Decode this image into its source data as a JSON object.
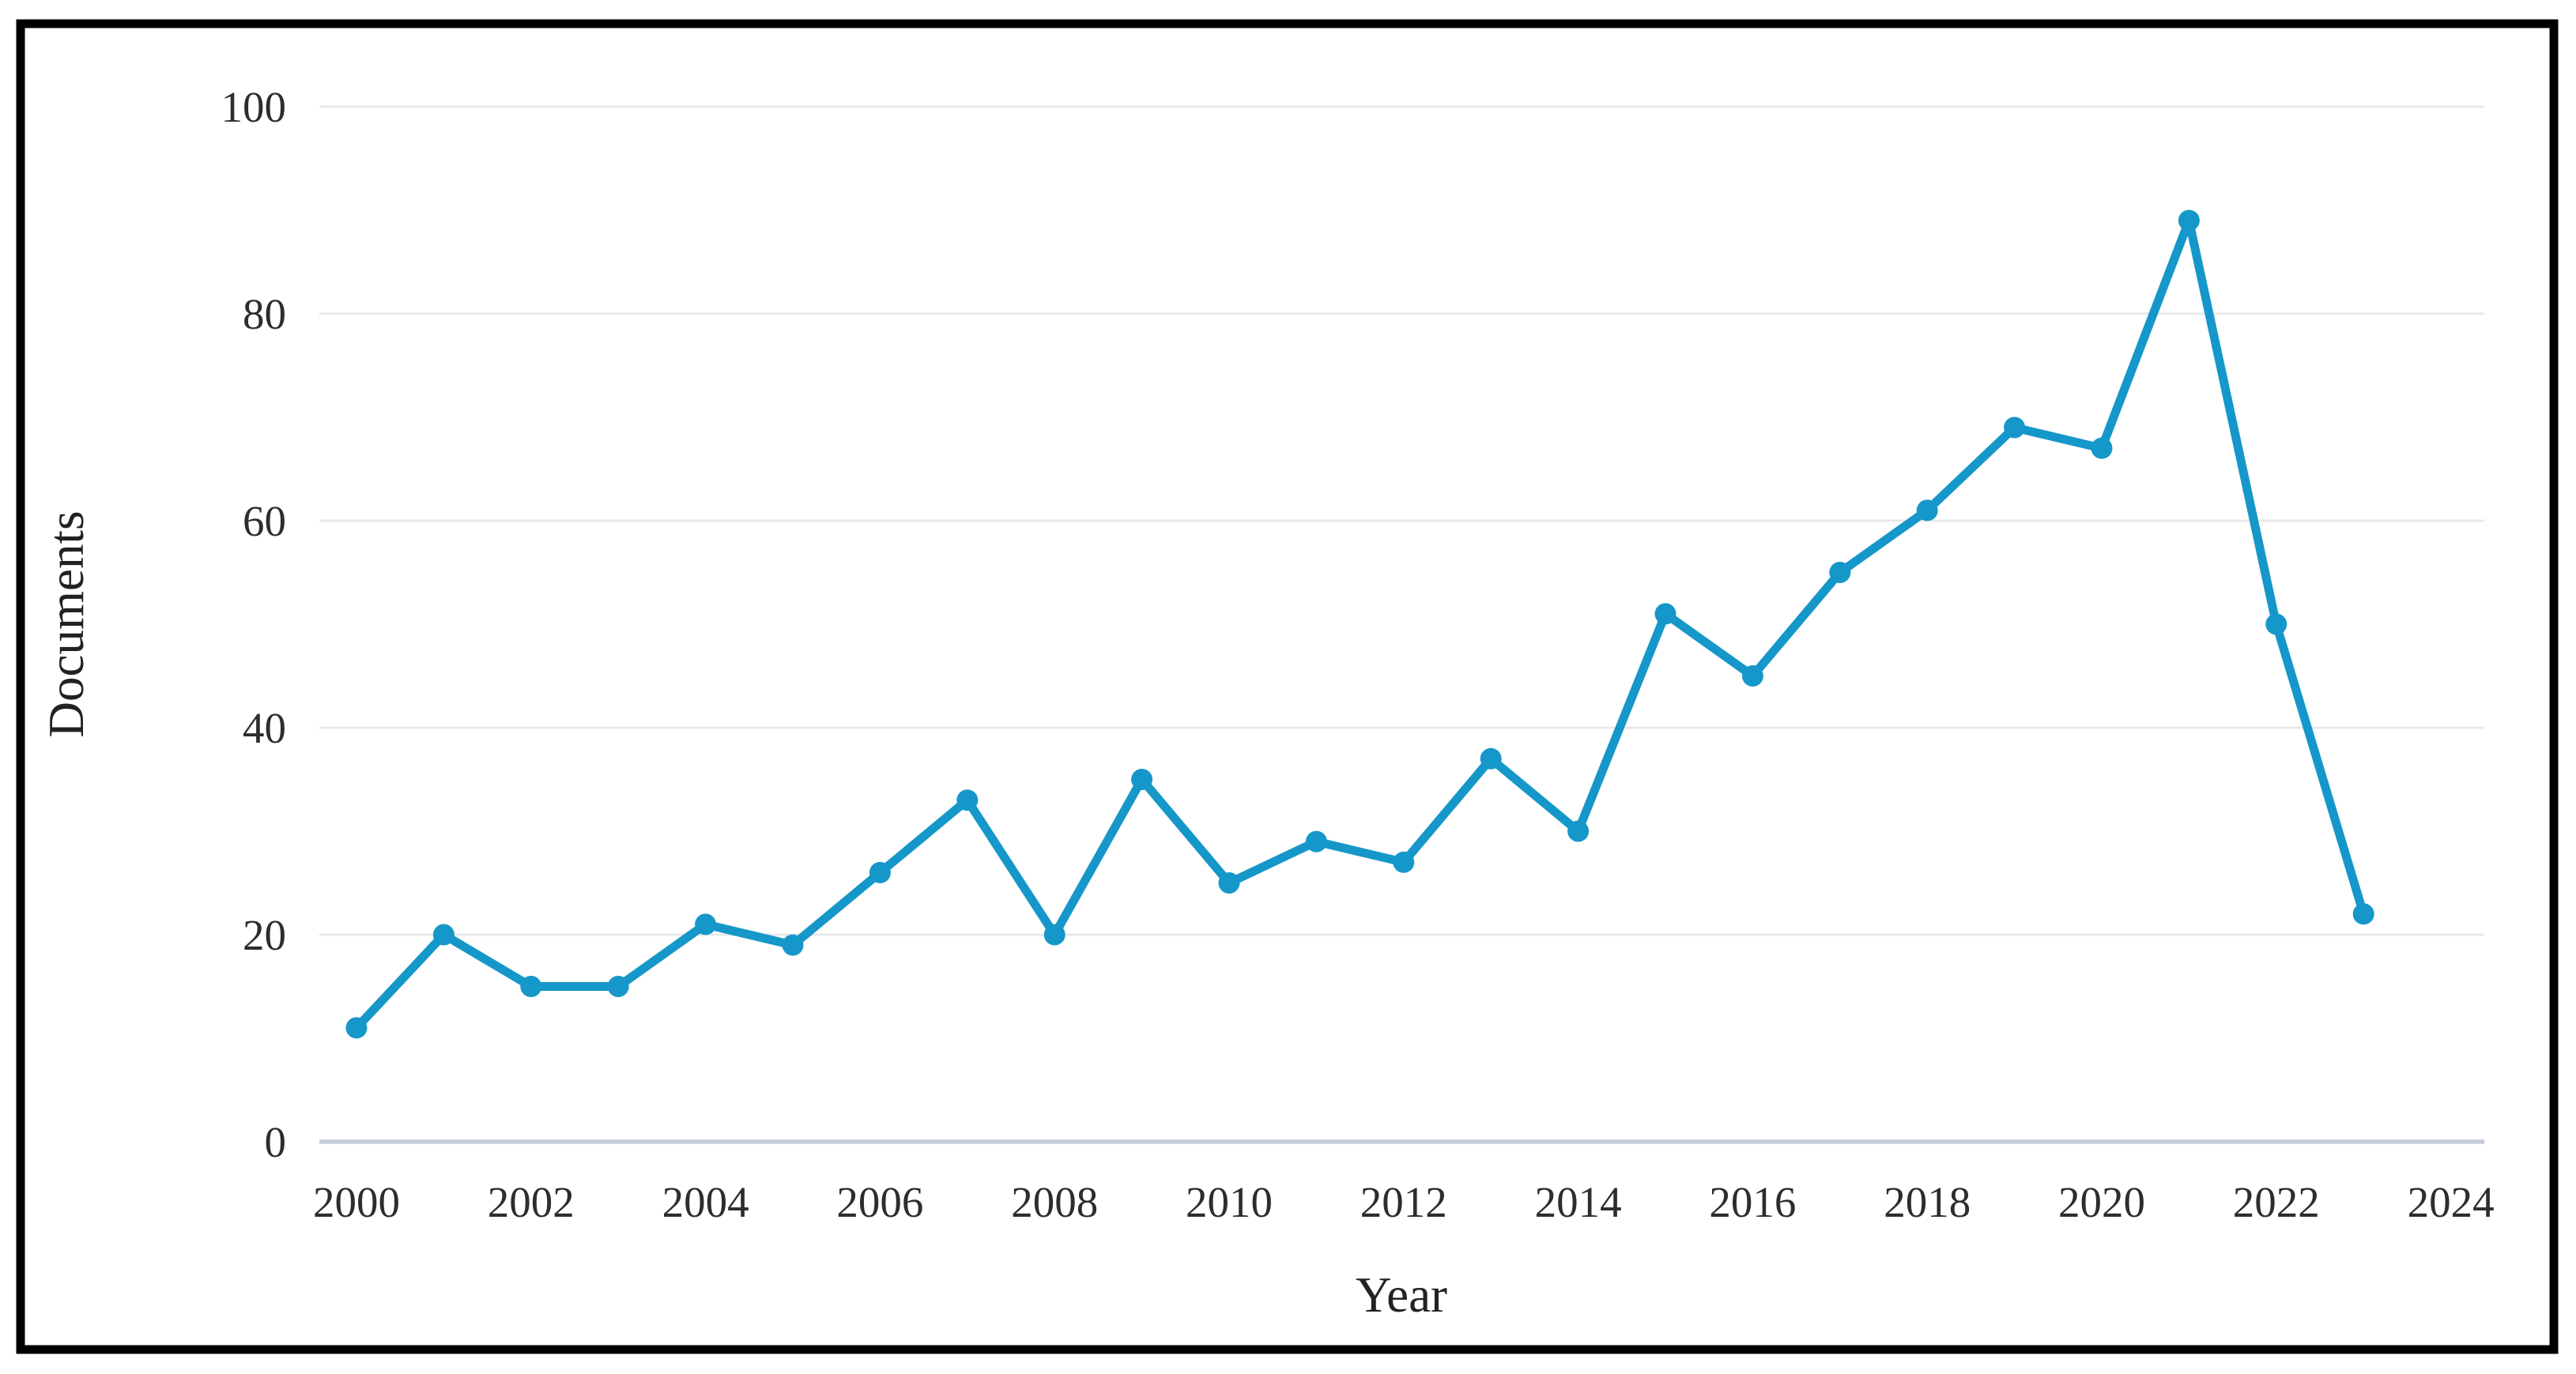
{
  "figure": {
    "background_color": "#ffffff",
    "border_color": "#000000"
  },
  "chart_data": {
    "type": "line",
    "title": "",
    "xlabel": "Year",
    "ylabel": "Documents",
    "x": [
      2000,
      2001,
      2002,
      2003,
      2004,
      2005,
      2006,
      2007,
      2008,
      2009,
      2010,
      2011,
      2012,
      2013,
      2014,
      2015,
      2016,
      2017,
      2018,
      2019,
      2020,
      2021,
      2022,
      2023
    ],
    "values": [
      11,
      20,
      15,
      15,
      21,
      19,
      26,
      33,
      20,
      35,
      25,
      29,
      27,
      37,
      30,
      51,
      45,
      55,
      61,
      69,
      67,
      89,
      50,
      22
    ],
    "series_name": "Documents",
    "x_ticks": [
      2000,
      2002,
      2004,
      2006,
      2008,
      2010,
      2012,
      2014,
      2016,
      2018,
      2020,
      2022,
      2024
    ],
    "y_ticks": [
      0,
      20,
      40,
      60,
      80,
      100
    ],
    "ylim": [
      0,
      100
    ],
    "xlim": [
      2000,
      2024
    ],
    "grid": "horizontal",
    "legend_position": "none",
    "marker": "circle",
    "line_color": "#1597c9",
    "marker_color": "#1597c9",
    "gridline_color": "#e9e9e9",
    "zero_axis_color": "#c3ccd8",
    "tick_text_color": "#2d2d2d",
    "axis_title_color": "#222222"
  }
}
